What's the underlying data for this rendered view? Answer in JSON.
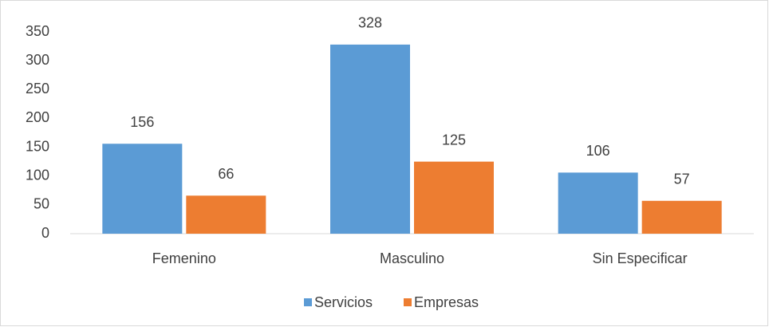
{
  "chart_data": {
    "type": "bar",
    "categories": [
      "Femenino",
      "Masculino",
      "Sin Especificar"
    ],
    "series": [
      {
        "name": "Servicios",
        "color": "#5b9bd5",
        "values": [
          156,
          328,
          106
        ]
      },
      {
        "name": "Empresas",
        "color": "#ed7d31",
        "values": [
          66,
          125,
          57
        ]
      }
    ],
    "ylim": [
      0,
      350
    ],
    "yticks": [
      0,
      50,
      100,
      150,
      200,
      250,
      300,
      350
    ],
    "grid": false,
    "legend": "bottom"
  }
}
